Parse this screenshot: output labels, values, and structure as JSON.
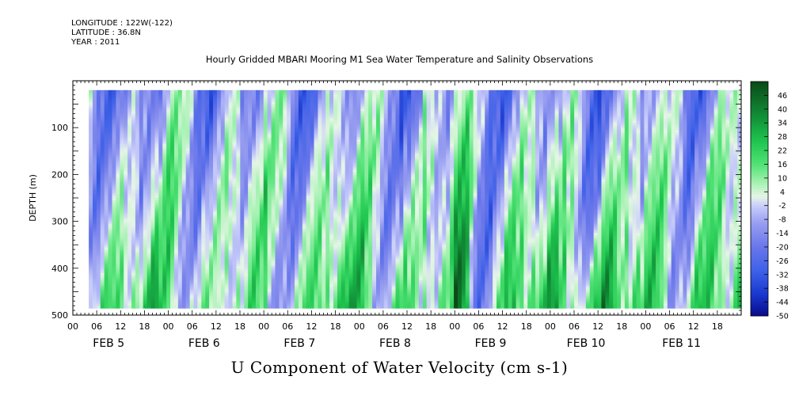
{
  "header": {
    "longitude": "LONGITUDE : 122W(-122)",
    "latitude": "LATITUDE : 36.8N",
    "year": "YEAR : 2011"
  },
  "chart_data": {
    "type": "heatmap",
    "title": "Hourly Gridded MBARI Mooring M1 Sea Water Temperature and Salinity Observations",
    "variable_label": "U Component of Water Velocity (cm s-1)",
    "ylabel": "DEPTH (m)",
    "y_reversed": true,
    "ylim": [
      0,
      500
    ],
    "y_ticks": [
      100,
      200,
      300,
      400,
      500
    ],
    "data_depth_range": [
      20,
      485
    ],
    "x_start_hour": 0,
    "x_end_hour": 168,
    "data_time_range_hours": [
      4,
      168
    ],
    "x_hour_labels": [
      "00",
      "06",
      "12",
      "18",
      "00",
      "06",
      "12",
      "18",
      "00",
      "06",
      "12",
      "18",
      "00",
      "06",
      "12",
      "18",
      "00",
      "06",
      "12",
      "18",
      "00",
      "06",
      "12",
      "18",
      "00",
      "06",
      "12",
      "18"
    ],
    "day_labels": [
      "FEB  5",
      "FEB  6",
      "FEB  7",
      "FEB  8",
      "FEB  9",
      "FEB 10",
      "FEB 11"
    ],
    "colorbar_levels": [
      46,
      40,
      34,
      28,
      22,
      16,
      10,
      4,
      -2,
      -8,
      -14,
      -20,
      -26,
      -32,
      -38,
      -44,
      -50
    ],
    "colorbar_range": [
      -50,
      52
    ],
    "colors": {
      "low": "#0a0a8a",
      "mid_negative": "#8f96ee",
      "near_zero": "#dfe4ff",
      "mid_positive": "#6ee596",
      "high": "#0b4a18"
    }
  }
}
